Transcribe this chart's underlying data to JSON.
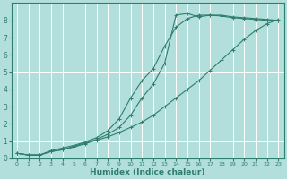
{
  "xlabel": "Humidex (Indice chaleur)",
  "bg_color": "#b2dfdb",
  "grid_color": "#c8e8e4",
  "line_color": "#2e7d6e",
  "xlim": [
    -0.5,
    23.5
  ],
  "ylim": [
    0,
    9
  ],
  "xticks": [
    0,
    1,
    2,
    3,
    4,
    5,
    6,
    7,
    8,
    9,
    10,
    11,
    12,
    13,
    14,
    15,
    16,
    17,
    18,
    19,
    20,
    21,
    22,
    23
  ],
  "yticks": [
    0,
    1,
    2,
    3,
    4,
    5,
    6,
    7,
    8
  ],
  "line1_x": [
    0,
    1,
    2,
    3,
    4,
    5,
    6,
    7,
    8,
    9,
    10,
    11,
    12,
    13,
    14,
    15,
    16,
    17,
    18,
    19,
    20,
    21,
    22,
    23
  ],
  "line1_y": [
    0.3,
    0.2,
    0.2,
    0.4,
    0.5,
    0.65,
    0.85,
    1.05,
    1.25,
    1.5,
    1.8,
    2.1,
    2.5,
    3.0,
    3.5,
    4.0,
    4.5,
    5.1,
    5.7,
    6.3,
    6.9,
    7.4,
    7.8,
    8.05
  ],
  "line2_x": [
    0,
    1,
    2,
    3,
    4,
    5,
    6,
    7,
    8,
    9,
    10,
    11,
    12,
    13,
    14,
    15,
    16,
    17,
    18,
    19,
    20,
    21,
    22,
    23
  ],
  "line2_y": [
    0.3,
    0.2,
    0.2,
    0.4,
    0.5,
    0.7,
    0.9,
    1.1,
    1.4,
    1.8,
    2.5,
    3.5,
    4.3,
    5.5,
    8.3,
    8.4,
    8.2,
    8.3,
    8.25,
    8.15,
    8.1,
    8.05,
    8.0,
    8.0
  ],
  "line3_x": [
    0,
    1,
    2,
    3,
    4,
    5,
    6,
    7,
    8,
    9,
    10,
    11,
    12,
    13,
    14,
    15,
    16,
    17,
    18,
    19,
    20,
    21,
    22,
    23
  ],
  "line3_y": [
    0.3,
    0.2,
    0.2,
    0.45,
    0.6,
    0.75,
    0.95,
    1.2,
    1.6,
    2.3,
    3.5,
    4.5,
    5.2,
    6.5,
    7.6,
    8.1,
    8.3,
    8.3,
    8.3,
    8.2,
    8.15,
    8.1,
    8.05,
    8.0
  ]
}
